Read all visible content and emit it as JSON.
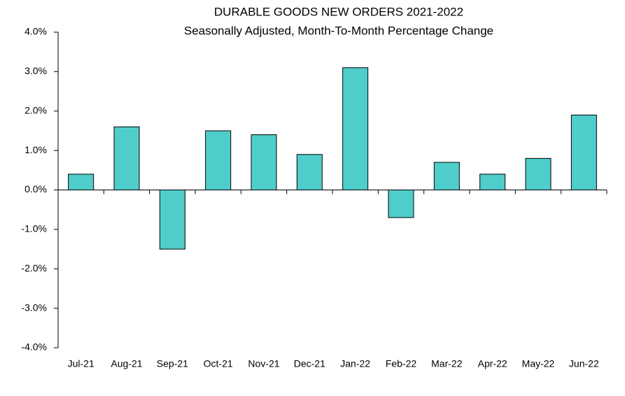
{
  "chart_data": {
    "type": "bar",
    "title": "DURABLE GOODS NEW ORDERS 2021-2022",
    "subtitle": "Seasonally Adjusted,  Month-To-Month Percentage Change",
    "categories": [
      "Jul-21",
      "Aug-21",
      "Sep-21",
      "Oct-21",
      "Nov-21",
      "Dec-21",
      "Jan-22",
      "Feb-22",
      "Mar-22",
      "Apr-22",
      "May-22",
      "Jun-22"
    ],
    "values": [
      0.4,
      1.6,
      -1.5,
      1.5,
      1.4,
      0.9,
      3.1,
      -0.7,
      0.7,
      0.4,
      0.8,
      1.9
    ],
    "color": "#4ecdcb",
    "ylim": [
      -4,
      4
    ],
    "yticks": [
      {
        "value": -4,
        "label": "-4.0%"
      },
      {
        "value": -3,
        "label": "-3.0%"
      },
      {
        "value": -2,
        "label": "-2.0%"
      },
      {
        "value": -1,
        "label": "-1.0%"
      },
      {
        "value": 0,
        "label": "0.0%"
      },
      {
        "value": 1,
        "label": "1.0%"
      },
      {
        "value": 2,
        "label": "2.0%"
      },
      {
        "value": 3,
        "label": "3.0%"
      },
      {
        "value": 4,
        "label": "4.0%"
      }
    ],
    "grid": false
  }
}
